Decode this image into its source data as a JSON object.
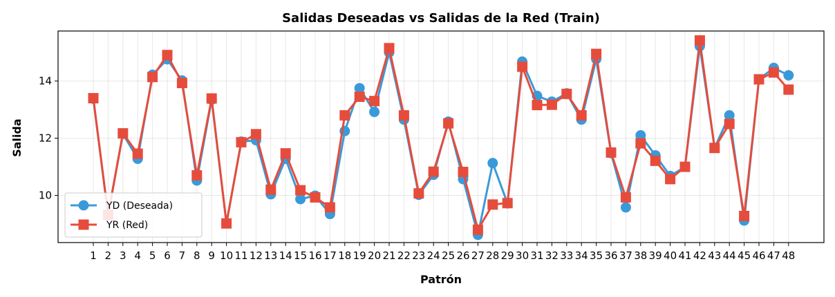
{
  "chart_data": {
    "type": "line",
    "title": "Salidas Deseadas vs Salidas de la Red (Train)",
    "xlabel": "Patrón",
    "ylabel": "Salida",
    "x": [
      1,
      2,
      3,
      4,
      5,
      6,
      7,
      8,
      9,
      10,
      11,
      12,
      13,
      14,
      15,
      16,
      17,
      18,
      19,
      20,
      21,
      22,
      23,
      24,
      25,
      26,
      27,
      28,
      29,
      30,
      31,
      32,
      33,
      34,
      35,
      36,
      37,
      38,
      39,
      40,
      41,
      42,
      43,
      44,
      45,
      46,
      47,
      48
    ],
    "yticks": [
      10,
      12,
      14
    ],
    "ylim": [
      8.35,
      15.75
    ],
    "grid": true,
    "legend_position": "lower left",
    "series": [
      {
        "name": "YD (Deseada)",
        "marker": "circle",
        "color": "#3a9ad9",
        "values": [
          13.38,
          9.32,
          12.15,
          11.28,
          14.22,
          14.76,
          14.02,
          10.52,
          13.35,
          9.02,
          11.88,
          11.93,
          10.04,
          11.28,
          9.87,
          9.99,
          9.35,
          12.25,
          13.75,
          12.92,
          15.0,
          12.65,
          10.02,
          10.72,
          12.58,
          10.57,
          8.62,
          11.13,
          9.72,
          14.68,
          13.48,
          13.28,
          13.57,
          12.65,
          14.77,
          11.48,
          9.58,
          12.1,
          11.4,
          10.68,
          11.0,
          15.22,
          11.66,
          12.8,
          9.12,
          14.06,
          14.46,
          14.2
        ]
      },
      {
        "name": "YR (Red)",
        "marker": "square",
        "color": "#e64c3c",
        "values": [
          13.4,
          9.32,
          12.17,
          11.46,
          14.14,
          14.91,
          13.93,
          10.7,
          13.39,
          9.02,
          11.86,
          12.14,
          10.2,
          11.47,
          10.18,
          9.93,
          9.58,
          12.8,
          13.45,
          13.3,
          15.15,
          12.8,
          10.07,
          10.83,
          12.52,
          10.82,
          8.8,
          9.68,
          9.73,
          14.5,
          13.16,
          13.17,
          13.55,
          12.8,
          14.95,
          11.5,
          9.93,
          11.82,
          11.21,
          10.57,
          11.0,
          15.42,
          11.66,
          12.5,
          9.28,
          14.06,
          14.3,
          13.7
        ]
      }
    ]
  }
}
